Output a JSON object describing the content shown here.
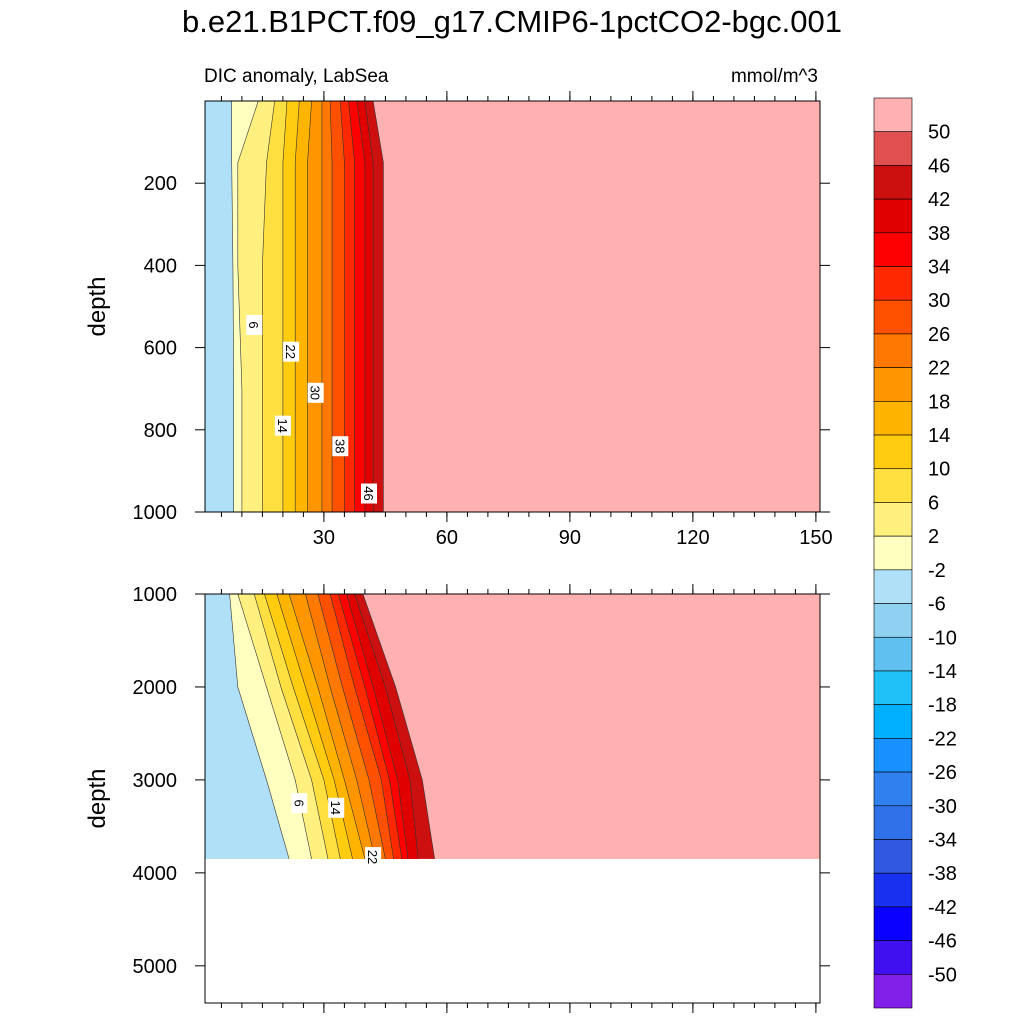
{
  "title": "b.e21.B1PCT.f09_g17.CMIP6-1pctCO2-bgc.001",
  "subtitle_left": "DIC anomaly, LabSea",
  "subtitle_right": "mmol/m^3",
  "chart_data": [
    {
      "type": "contour",
      "panel": "upper",
      "ylabel": "depth",
      "xlabel": "",
      "xlim": [
        1,
        151
      ],
      "ylim": [
        1000,
        0
      ],
      "x_ticks": [
        30,
        60,
        90,
        120,
        150
      ],
      "x_tick_labels": [
        "30",
        "60",
        "90",
        "120",
        "150"
      ],
      "y_ticks": [
        200,
        400,
        600,
        800,
        1000
      ],
      "y_tick_labels": [
        "200",
        "400",
        "600",
        "800",
        "1000"
      ],
      "contour_levels": [
        -50,
        -46,
        -42,
        -38,
        -34,
        -30,
        -26,
        -22,
        -18,
        -14,
        -10,
        -6,
        -2,
        2,
        6,
        10,
        14,
        18,
        22,
        26,
        30,
        34,
        38,
        42,
        46,
        50
      ],
      "contour_x_at_depth": {
        "depths": [
          0,
          150,
          400,
          700,
          1000
        ],
        "x_positions": [
          [
            7.5,
            7.5,
            7.8,
            8,
            8
          ],
          [
            14,
            9,
            9,
            10,
            10
          ],
          [
            18,
            16,
            15,
            15,
            15
          ],
          [
            21,
            20,
            20,
            20,
            20
          ],
          [
            24,
            23,
            23,
            23,
            23
          ],
          [
            27,
            26,
            26,
            26,
            26
          ],
          [
            29.5,
            29.5,
            29.5,
            29.5,
            29.5
          ],
          [
            31.5,
            32,
            32,
            32,
            32
          ],
          [
            34,
            35,
            35,
            35,
            35
          ],
          [
            36,
            37.5,
            37.5,
            37.5,
            37.5
          ],
          [
            38,
            40,
            40,
            40,
            40
          ],
          [
            40,
            42,
            42,
            42,
            42
          ],
          [
            42,
            44.5,
            44.5,
            44.5,
            44.5
          ]
        ]
      },
      "contour_labels": [
        {
          "text": "6",
          "x": 13,
          "y": 545
        },
        {
          "text": "22",
          "x": 22,
          "y": 610
        },
        {
          "text": "30",
          "x": 28,
          "y": 710
        },
        {
          "text": "14",
          "x": 20,
          "y": 790
        },
        {
          "text": "38",
          "x": 34,
          "y": 840
        },
        {
          "text": "46",
          "x": 41,
          "y": 955
        }
      ]
    },
    {
      "type": "contour",
      "panel": "lower",
      "ylabel": "depth",
      "xlabel": "",
      "xlim": [
        1,
        151
      ],
      "ylim": [
        5400,
        1000
      ],
      "x_ticks": [
        30,
        60,
        90,
        120,
        150
      ],
      "y_ticks": [
        1000,
        2000,
        3000,
        4000,
        5000
      ],
      "y_tick_labels": [
        "1000",
        "2000",
        "3000",
        "4000",
        "5000"
      ],
      "bottom_depth": 3850,
      "contour_x_at_depth": {
        "depths": [
          1000,
          2000,
          3000,
          3850
        ],
        "x_positions": [
          [
            7,
            9,
            16,
            21.5
          ],
          [
            9,
            16,
            23,
            27
          ],
          [
            13,
            19.5,
            27,
            31
          ],
          [
            15.5,
            22.5,
            30,
            34
          ],
          [
            18.5,
            25.5,
            32.5,
            37
          ],
          [
            21.5,
            28.5,
            35,
            40
          ],
          [
            25.5,
            31.5,
            38,
            42.5
          ],
          [
            28.5,
            34.5,
            41,
            45
          ],
          [
            31.5,
            37.5,
            44,
            47
          ],
          [
            33.5,
            40,
            46,
            49
          ],
          [
            35.5,
            42,
            48,
            50.5
          ],
          [
            37.5,
            45,
            51,
            53
          ],
          [
            39.5,
            47.5,
            54,
            57
          ]
        ]
      },
      "contour_labels": [
        {
          "text": "6",
          "x": 24,
          "y": 3250
        },
        {
          "text": "14",
          "x": 33,
          "y": 3300
        },
        {
          "text": "22",
          "x": 42,
          "y": 3830
        }
      ]
    }
  ],
  "colorbar": {
    "labels": [
      "50",
      "46",
      "42",
      "38",
      "34",
      "30",
      "26",
      "22",
      "18",
      "14",
      "10",
      "6",
      "2",
      "-2",
      "-6",
      "-10",
      "-14",
      "-18",
      "-22",
      "-26",
      "-30",
      "-34",
      "-38",
      "-42",
      "-46",
      "-50"
    ],
    "colors_top_to_bottom": [
      "#ffb0b0",
      "#e05050",
      "#cc1010",
      "#e00000",
      "#ff0000",
      "#ff2800",
      "#ff5000",
      "#ff7800",
      "#ff9600",
      "#ffb400",
      "#ffcc10",
      "#ffe040",
      "#fff080",
      "#ffffc0",
      "#b0e0f8",
      "#90d0f0",
      "#60c0f0",
      "#20c0f8",
      "#00b0ff",
      "#1890ff",
      "#3080f0",
      "#3070e8",
      "#3058e0",
      "#1830f0",
      "#0a00ff",
      "#4010f0",
      "#8020e8"
    ]
  },
  "empty_region_note": ""
}
